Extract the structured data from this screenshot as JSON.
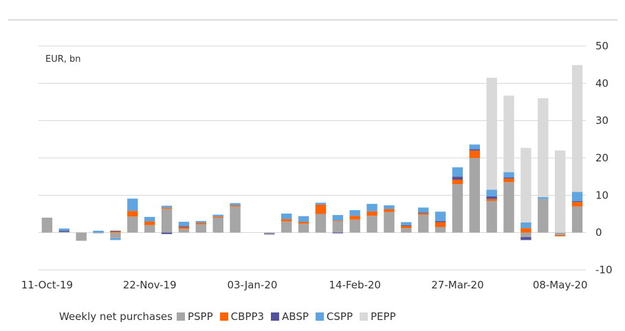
{
  "chart_data": {
    "type": "bar",
    "stacked": true,
    "unit_label": "EUR, bn",
    "ylim": [
      -10,
      50
    ],
    "y_ticks": [
      50,
      40,
      30,
      20,
      10,
      0,
      -10
    ],
    "grid": true,
    "y_axis_side": "right",
    "legend_position": "bottom",
    "legend_title": "Weekly net purchases",
    "x_tick_labels": [
      "11-Oct-19",
      "22-Nov-19",
      "03-Jan-20",
      "14-Feb-20",
      "27-Mar-20",
      "08-May-20"
    ],
    "x_tick_indices": [
      0,
      6,
      12,
      18,
      24,
      30
    ],
    "categories": [
      "11-Oct-19",
      "18-Oct-19",
      "25-Oct-19",
      "01-Nov-19",
      "08-Nov-19",
      "15-Nov-19",
      "22-Nov-19",
      "29-Nov-19",
      "06-Dec-19",
      "13-Dec-19",
      "20-Dec-19",
      "27-Dec-19",
      "03-Jan-20",
      "10-Jan-20",
      "17-Jan-20",
      "24-Jan-20",
      "31-Jan-20",
      "07-Feb-20",
      "14-Feb-20",
      "21-Feb-20",
      "28-Feb-20",
      "06-Mar-20",
      "13-Mar-20",
      "20-Mar-20",
      "27-Mar-20",
      "03-Apr-20",
      "10-Apr-20",
      "17-Apr-20",
      "24-Apr-20",
      "01-May-20",
      "08-May-20",
      "15-May-20"
    ],
    "series": [
      {
        "name": "PSPP",
        "color": "#a6a6a6",
        "values": [
          4.0,
          0.2,
          -2.2,
          -0.2,
          -1.5,
          4.3,
          2.0,
          6.4,
          1.0,
          2.2,
          4.0,
          7.0,
          0,
          -0.3,
          3.0,
          2.4,
          5.0,
          3.0,
          3.5,
          4.5,
          5.5,
          1.2,
          4.8,
          1.5,
          13.0,
          20.0,
          8.5,
          13.5,
          -1.2,
          9.0,
          -0.7,
          7.0
        ]
      },
      {
        "name": "CBPP3",
        "color": "#ff6200",
        "values": [
          0,
          0,
          0,
          0,
          0.3,
          1.5,
          1.0,
          0.3,
          0.5,
          0.4,
          0.3,
          0.3,
          0,
          0,
          0.6,
          0.5,
          2.5,
          0.2,
          1.0,
          1.2,
          0.8,
          0.6,
          0.4,
          1.3,
          1.2,
          2.0,
          0.5,
          1.0,
          1.2,
          0,
          -0.3,
          1.2
        ]
      },
      {
        "name": "ABSP",
        "color": "#525199",
        "values": [
          0,
          0.3,
          0,
          0,
          0.2,
          0,
          0,
          -0.4,
          0.2,
          0,
          0,
          0,
          0,
          -0.2,
          0,
          0,
          0,
          -0.2,
          0,
          0,
          0,
          0.2,
          0.2,
          0.3,
          0.8,
          0.3,
          0.7,
          0.3,
          -0.8,
          0,
          0,
          0.2
        ]
      },
      {
        "name": "CSPP",
        "color": "#60a5e0",
        "values": [
          0,
          0.6,
          0,
          0.5,
          -0.5,
          3.3,
          1.2,
          0.5,
          1.2,
          0.5,
          0.5,
          0.6,
          0,
          0,
          1.5,
          1.5,
          0.5,
          1.5,
          1.5,
          2.0,
          1.0,
          0.8,
          1.3,
          2.5,
          2.5,
          1.3,
          1.8,
          1.4,
          1.5,
          0.5,
          0,
          2.5
        ]
      },
      {
        "name": "PEPP",
        "color": "#d9d9d9",
        "values": [
          0,
          0,
          0,
          0,
          0,
          0,
          0,
          0,
          0,
          0,
          0,
          0,
          0,
          0,
          0,
          0,
          0,
          0,
          0,
          0,
          0,
          0,
          0,
          0,
          0,
          0,
          30.0,
          20.5,
          20.0,
          26.5,
          22.0,
          34.0
        ]
      }
    ]
  }
}
